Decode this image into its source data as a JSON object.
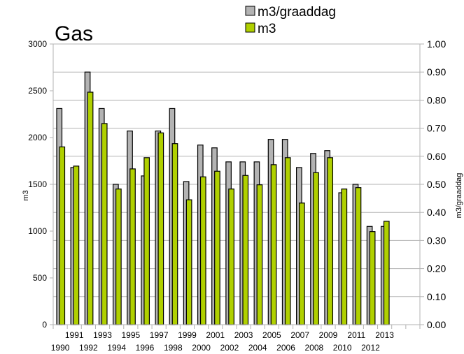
{
  "chart_data": {
    "type": "bar",
    "title": "Gas",
    "ylabel": "m3",
    "y2label": "m3/graaddag",
    "ylim": [
      0,
      3000
    ],
    "y2lim": [
      0,
      1.0
    ],
    "yticks": [
      "0",
      "500",
      "1000",
      "1500",
      "2000",
      "2500",
      "3000"
    ],
    "y2ticks": [
      "0.00",
      "0.10",
      "0.20",
      "0.30",
      "0.40",
      "0.50",
      "0.60",
      "0.70",
      "0.80",
      "0.90",
      "1.00"
    ],
    "grid": true,
    "legend": "top",
    "categories": [
      "1990",
      "1991",
      "1992",
      "1993",
      "1994",
      "1995",
      "1996",
      "1997",
      "1998",
      "1999",
      "2000",
      "2001",
      "2002",
      "2003",
      "2004",
      "2005",
      "2006",
      "2007",
      "2008",
      "2009",
      "2010",
      "2011",
      "2012",
      "2013",
      "",
      ""
    ],
    "series": [
      {
        "name": "m3/graaddag",
        "axis": "right",
        "color": "#b3b3b3",
        "values": [
          0.77,
          0.56,
          0.9,
          0.77,
          0.5,
          0.69,
          0.53,
          0.69,
          0.77,
          0.51,
          0.64,
          0.63,
          0.58,
          0.58,
          0.58,
          0.66,
          0.66,
          0.56,
          0.61,
          0.62,
          0.47,
          0.5,
          0.35,
          0.35,
          null,
          null
        ]
      },
      {
        "name": "m3",
        "axis": "left",
        "color": "#b0d000",
        "values": [
          1900,
          1695,
          2485,
          2150,
          1450,
          1665,
          1785,
          2050,
          1935,
          1335,
          1580,
          1640,
          1450,
          1595,
          1495,
          1710,
          1785,
          1300,
          1625,
          1785,
          1450,
          1465,
          995,
          1105,
          null,
          null
        ]
      }
    ]
  }
}
